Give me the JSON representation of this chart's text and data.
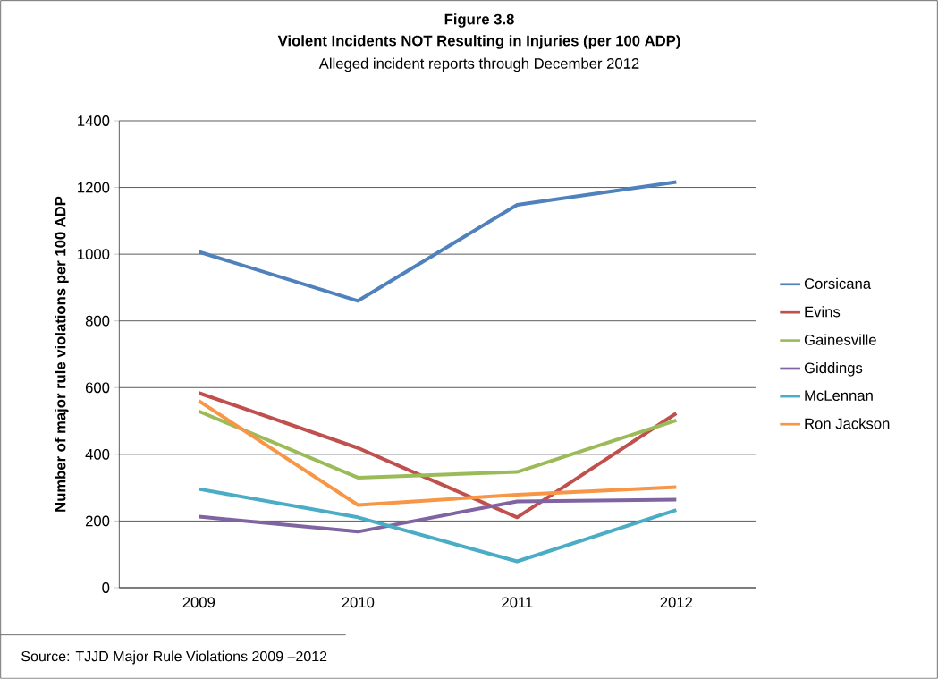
{
  "chart_data": {
    "type": "line",
    "title": "Figure 3.8",
    "subtitle": "Violent Incidents NOT Resulting in Injuries (per 100 ADP)",
    "annotations": [
      "Alleged incident reports through December 2012",
      "Source: TJJD Major Rule Violations 2009 –2012"
    ],
    "ylabel": "Number of major rule violations per 100 ADP",
    "categories": [
      "2009",
      "2010",
      "2011",
      "2012"
    ],
    "ylim": [
      0,
      1400
    ],
    "yticks": [
      0,
      200,
      400,
      600,
      800,
      1000,
      1200,
      1400
    ],
    "grid": "y",
    "legend": "right",
    "marker": "none",
    "line_style": "solid",
    "series": [
      {
        "name": "Corsicana",
        "color": "#4f81bd",
        "values": [
          1007,
          860,
          1148,
          1216
        ]
      },
      {
        "name": "Evins",
        "color": "#c0504d",
        "values": [
          584,
          419,
          211,
          523
        ]
      },
      {
        "name": "Gainesville",
        "color": "#9bbb59",
        "values": [
          529,
          330,
          347,
          502
        ]
      },
      {
        "name": "Giddings",
        "color": "#8064a2",
        "values": [
          213,
          168,
          259,
          264
        ]
      },
      {
        "name": "McLennan",
        "color": "#4bacc6",
        "values": [
          296,
          211,
          79,
          233
        ]
      },
      {
        "name": "Ron Jackson",
        "color": "#f79646",
        "values": [
          560,
          248,
          279,
          302
        ]
      }
    ]
  }
}
